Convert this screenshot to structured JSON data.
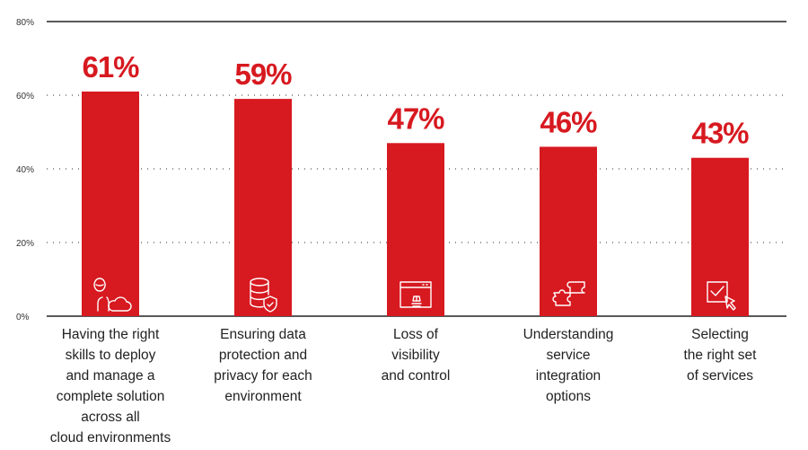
{
  "chart_data": {
    "type": "bar",
    "categories": [
      "Having the right skills to deploy and manage a complete solution across all cloud environments",
      "Ensuring data protection and privacy for each environment",
      "Loss of visibility and control",
      "Understanding service integration options",
      "Selecting the right set of services"
    ],
    "category_lines": [
      [
        "Having the right",
        "skills to deploy",
        "and manage a",
        "complete solution",
        "across all",
        "cloud environments"
      ],
      [
        "Ensuring data",
        "protection and",
        "privacy for each",
        "environment"
      ],
      [
        "Loss of",
        "visibility",
        "and control"
      ],
      [
        "Understanding",
        "service",
        "integration",
        "options"
      ],
      [
        "Selecting",
        "the right set",
        "of services"
      ]
    ],
    "values": [
      61,
      59,
      47,
      46,
      43
    ],
    "value_labels": [
      "61%",
      "59%",
      "47%",
      "46%",
      "43%"
    ],
    "icons": [
      "person-cloud-icon",
      "database-shield-icon",
      "browser-window-icon",
      "puzzle-icon",
      "checkbox-cursor-icon"
    ],
    "yticks": [
      0,
      20,
      40,
      60,
      80
    ],
    "ytick_labels": [
      "0%",
      "20%",
      "40%",
      "60%",
      "80%"
    ],
    "ylim": [
      0,
      80
    ],
    "grid": true,
    "title": "",
    "xlabel": "",
    "ylabel": "",
    "bar_color": "#d71920"
  }
}
